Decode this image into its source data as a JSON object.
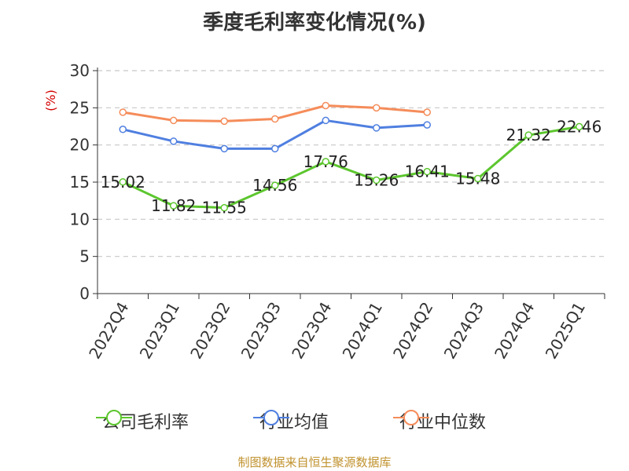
{
  "title": "季度毛利率变化情况(%)",
  "footer": "制图数据来自恒生聚源数据库",
  "chart_data": {
    "type": "line",
    "title": "季度毛利率变化情况(%)",
    "xlabel": "",
    "ylabel": "(%)",
    "ylim": [
      0,
      30
    ],
    "yticks": [
      0,
      5,
      10,
      15,
      20,
      25,
      30
    ],
    "grid": true,
    "legend_position": "bottom",
    "categories": [
      "2022Q4",
      "2023Q1",
      "2023Q2",
      "2023Q3",
      "2023Q4",
      "2024Q1",
      "2024Q2",
      "2024Q3",
      "2024Q4",
      "2025Q1"
    ],
    "series": [
      {
        "name": "公司毛利率",
        "color": "#5cc62e",
        "show_labels": true,
        "values": [
          15.02,
          11.82,
          11.55,
          14.56,
          17.76,
          15.26,
          16.41,
          15.48,
          21.32,
          22.46
        ],
        "labels": [
          "15.02",
          "11.82",
          "11.55",
          "14.56",
          "17.76",
          "15.26",
          "16.41",
          "15.48",
          "21.32",
          "22.46"
        ]
      },
      {
        "name": "行业均值",
        "color": "#4f7fe0",
        "show_labels": false,
        "values": [
          22.1,
          20.5,
          19.5,
          19.5,
          23.3,
          22.3,
          22.7,
          null,
          null,
          null
        ]
      },
      {
        "name": "行业中位数",
        "color": "#f58c5a",
        "show_labels": false,
        "values": [
          24.4,
          23.3,
          23.2,
          23.5,
          25.3,
          25.0,
          24.4,
          null,
          null,
          null
        ]
      }
    ]
  }
}
